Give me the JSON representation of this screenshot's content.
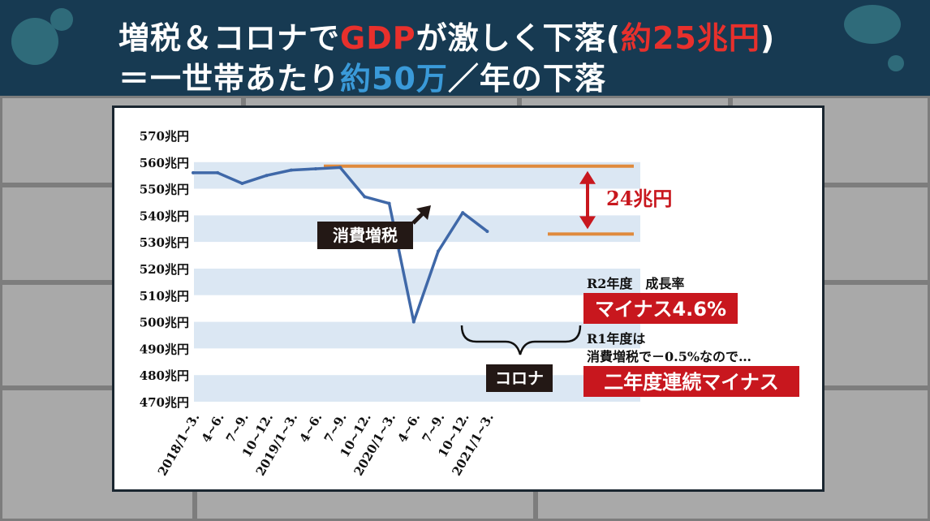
{
  "header": {
    "title_line1_a": "増税＆コロナで",
    "title_line1_b": "GDP",
    "title_line1_c": "が激しく下落(",
    "title_line1_d": "約25兆円",
    "title_line1_e": ")",
    "title_line2_a": "＝一世帯あたり",
    "title_line2_b": "約50万",
    "title_line2_c": "／年の下落"
  },
  "colors": {
    "header_bg": "#173a52",
    "accent_red": "#e8302c",
    "accent_blue": "#3a9ad9",
    "line": "#3f68a8",
    "ref_line": "#e08a3c",
    "label_box": "#231815",
    "red_box": "#c8171e"
  },
  "chart_data": {
    "type": "line",
    "categories": [
      "2018/1~3.",
      "4~6.",
      "7~9.",
      "10~12.",
      "2019/1~3.",
      "4~6.",
      "7~9.",
      "10~12.",
      "2020/1~3.",
      "4~6.",
      "7~9.",
      "10~12.",
      "2021/1~3."
    ],
    "series": [
      {
        "values": [
          556,
          556,
          552,
          555,
          557,
          557.5,
          558,
          547,
          544.5,
          500,
          526.5,
          541,
          534
        ]
      }
    ],
    "y_ticks": [
      "570兆円",
      "560兆円",
      "550兆円",
      "540兆円",
      "530兆円",
      "520兆円",
      "510兆円",
      "500兆円",
      "490兆円",
      "480兆円",
      "470兆円"
    ],
    "ylim": [
      470,
      570
    ],
    "grid": "alternating horizontal bands",
    "reference_lines": [
      558.5,
      533
    ],
    "annotations": {
      "gap_label": "24兆円",
      "tax_label": "消費増税",
      "corona_label": "コロナ",
      "r2_label": "R2年度　成長率",
      "r2_value": "マイナス4.6%",
      "r1_line1": "R1年度は",
      "r1_line2": "消費増税で－0.5%なので…",
      "r1_value": "二年度連続マイナス"
    }
  }
}
